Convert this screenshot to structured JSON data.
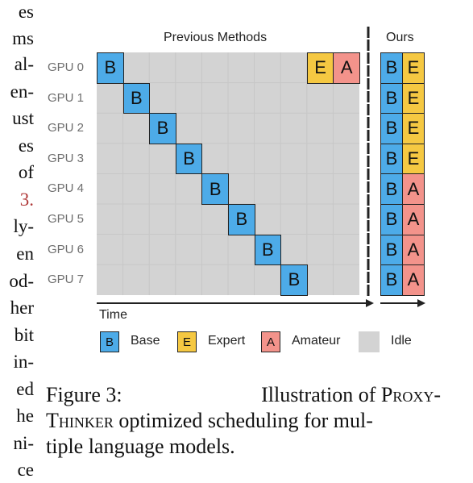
{
  "left_text_fragments": [
    "es",
    "ms",
    "al-",
    "en-",
    "ust",
    "es",
    "of",
    "3.",
    "ly-",
    "en",
    "od-",
    "her",
    "bit",
    "in-",
    "ed",
    "he",
    "ni-",
    "ce"
  ],
  "panels": {
    "previous_title": "Previous Methods",
    "ours_title": "Ours"
  },
  "gpus": [
    "GPU 0",
    "GPU 1",
    "GPU 2",
    "GPU 3",
    "GPU 4",
    "GPU 5",
    "GPU 6",
    "GPU 7"
  ],
  "block_letters": {
    "base": "B",
    "expert": "E",
    "amateur": "A"
  },
  "colors": {
    "base": "#4dabe8",
    "expert": "#f5c842",
    "amateur": "#f3938b",
    "idle": "#d3d3d3"
  },
  "previous_schedule": {
    "time_slots": 10,
    "blocks": [
      {
        "gpu": 0,
        "slot": 0,
        "type": "base"
      },
      {
        "gpu": 1,
        "slot": 1,
        "type": "base"
      },
      {
        "gpu": 2,
        "slot": 2,
        "type": "base"
      },
      {
        "gpu": 3,
        "slot": 3,
        "type": "base"
      },
      {
        "gpu": 4,
        "slot": 4,
        "type": "base"
      },
      {
        "gpu": 5,
        "slot": 5,
        "type": "base"
      },
      {
        "gpu": 6,
        "slot": 6,
        "type": "base"
      },
      {
        "gpu": 7,
        "slot": 7,
        "type": "base"
      },
      {
        "gpu": 0,
        "slot": 8,
        "type": "expert"
      },
      {
        "gpu": 0,
        "slot": 9,
        "type": "amateur"
      }
    ]
  },
  "ours_schedule": [
    [
      "base",
      "expert"
    ],
    [
      "base",
      "expert"
    ],
    [
      "base",
      "expert"
    ],
    [
      "base",
      "expert"
    ],
    [
      "base",
      "amateur"
    ],
    [
      "base",
      "amateur"
    ],
    [
      "base",
      "amateur"
    ],
    [
      "base",
      "amateur"
    ]
  ],
  "time_label": "Time",
  "legend": [
    {
      "letter": "B",
      "label": "Base",
      "type": "base"
    },
    {
      "letter": "E",
      "label": "Expert",
      "type": "expert"
    },
    {
      "letter": "A",
      "label": "Amateur",
      "type": "amateur"
    },
    {
      "letter": "",
      "label": "Idle",
      "type": "idle"
    }
  ],
  "caption": {
    "prefix": "Figure 3:",
    "text1": "Illustration of ",
    "name_p1": "Proxy-",
    "name_p2": "Thinker",
    "text2": " optimized scheduling for mul-",
    "line3": "tiple language models."
  }
}
